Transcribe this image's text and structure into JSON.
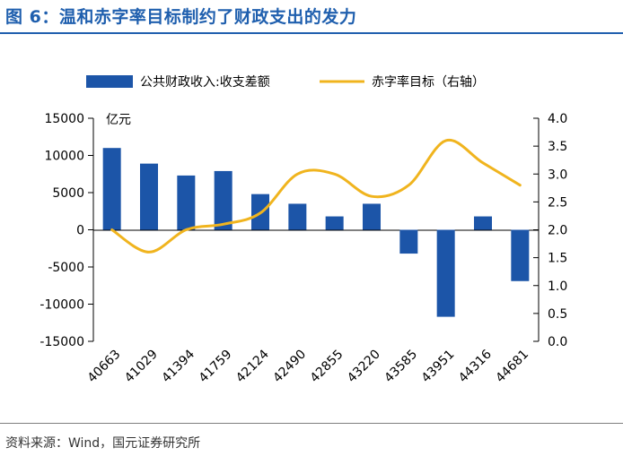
{
  "header": {
    "title": "图 6：温和赤字率目标制约了财政支出的发力"
  },
  "footer": {
    "source": "资料来源：Wind，国元证券研究所"
  },
  "colors": {
    "title": "#1f5fae",
    "bar": "#1c55a8",
    "line": "#f0b41e",
    "axis": "#000000"
  },
  "chart_data": {
    "type": "bar+line",
    "title": "温和赤字率目标制约了财政支出的发力",
    "categories": [
      "40663",
      "41029",
      "41394",
      "41759",
      "42124",
      "42490",
      "42855",
      "43220",
      "43585",
      "43951",
      "44316",
      "44681"
    ],
    "series": [
      {
        "name": "公共财政收入:收支差额",
        "type": "bar",
        "axis": "left",
        "values": [
          11000,
          8900,
          7300,
          7900,
          4800,
          3500,
          1800,
          3500,
          -3200,
          -11700,
          1800,
          -6900
        ]
      },
      {
        "name": "赤字率目标（右轴）",
        "type": "line",
        "axis": "right",
        "x": [
          0,
          1,
          2,
          3,
          4,
          5,
          6,
          7,
          8,
          9,
          10,
          11
        ],
        "values": [
          2.0,
          1.6,
          2.0,
          2.1,
          2.3,
          3.0,
          3.0,
          2.6,
          2.8,
          3.6,
          3.2,
          2.8
        ]
      }
    ],
    "left_axis": {
      "unit_label": "亿元",
      "ylim": [
        -15000,
        15000
      ],
      "ticks": [
        15000,
        10000,
        5000,
        0,
        -5000,
        -10000,
        -15000
      ],
      "tick_labels": [
        "15000",
        "10000",
        "5000",
        "0",
        "-5000",
        "-10000",
        "-15000"
      ]
    },
    "right_axis": {
      "ylim": [
        0.0,
        4.0
      ],
      "ticks": [
        4.0,
        3.5,
        3.0,
        2.5,
        2.0,
        1.5,
        1.0,
        0.5,
        0.0
      ],
      "tick_labels": [
        "4.0",
        "3.5",
        "3.0",
        "2.5",
        "2.0",
        "1.5",
        "1.0",
        "0.5",
        "0.0"
      ]
    },
    "legend": {
      "placement": "top",
      "bar_label": "公共财政收入:收支差额",
      "line_label": "赤字率目标（右轴）"
    },
    "grid": false
  }
}
